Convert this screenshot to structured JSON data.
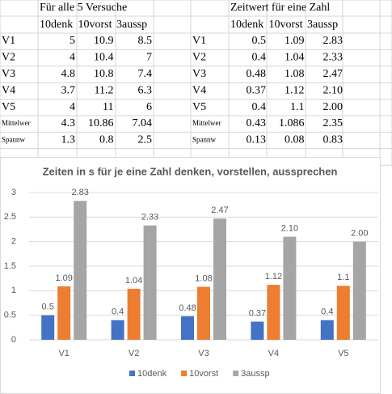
{
  "sheet": {
    "left_table": {
      "title": "Für alle 5 Versuche",
      "columns": [
        "10denk",
        "10vorst",
        "3aussp"
      ],
      "rows": [
        {
          "label": "V1",
          "cells": [
            "5",
            "10.9",
            "8.5"
          ]
        },
        {
          "label": "V2",
          "cells": [
            "4",
            "10.4",
            "7"
          ]
        },
        {
          "label": "V3",
          "cells": [
            "4.8",
            "10.8",
            "7.4"
          ]
        },
        {
          "label": "V4",
          "cells": [
            "3.7",
            "11.2",
            "6.3"
          ]
        },
        {
          "label": "V5",
          "cells": [
            "4",
            "11",
            "6"
          ]
        },
        {
          "label": "Mittelwer",
          "cells": [
            "4.3",
            "10.86",
            "7.04"
          ]
        },
        {
          "label": "Spannw",
          "cells": [
            "1.3",
            "0.8",
            "2.5"
          ]
        }
      ]
    },
    "right_table": {
      "title": "Zeitwert für eine Zahl",
      "columns": [
        "10denk",
        "10vorst",
        "3aussp"
      ],
      "rows": [
        {
          "label": "V1",
          "cells": [
            "0.5",
            "1.09",
            "2.83"
          ]
        },
        {
          "label": "V2",
          "cells": [
            "0.4",
            "1.04",
            "2.33"
          ]
        },
        {
          "label": "V3",
          "cells": [
            "0.48",
            "1.08",
            "2.47"
          ]
        },
        {
          "label": "V4",
          "cells": [
            "0.37",
            "1.12",
            "2.10"
          ]
        },
        {
          "label": "V5",
          "cells": [
            "0.4",
            "1.1",
            "2.00"
          ]
        },
        {
          "label": "Mittelwer",
          "cells": [
            "0.43",
            "1.086",
            "2.35"
          ]
        },
        {
          "label": "Spannw",
          "cells": [
            "0.13",
            "0.08",
            "0.83"
          ]
        }
      ]
    }
  },
  "chart_data": {
    "type": "bar",
    "title": "Zeiten in s für je eine Zahl denken, vorstellen, aussprechen",
    "categories": [
      "V1",
      "V2",
      "V3",
      "V4",
      "V5"
    ],
    "series": [
      {
        "name": "10denk",
        "color": "#4472c4",
        "values": [
          0.5,
          0.4,
          0.48,
          0.37,
          0.4
        ]
      },
      {
        "name": "10vorst",
        "color": "#ed7d31",
        "values": [
          1.09,
          1.04,
          1.08,
          1.12,
          1.1
        ]
      },
      {
        "name": "3aussp",
        "color": "#a5a5a5",
        "values": [
          2.83,
          2.33,
          2.47,
          2.1,
          2.0
        ],
        "value_labels": [
          "2.83",
          "2.33",
          "2.47",
          "2.10",
          "2.00"
        ]
      }
    ],
    "ylim": [
      0,
      3
    ],
    "yticks": [
      0,
      0.5,
      1,
      1.5,
      2,
      2.5,
      3
    ],
    "grid": true,
    "legend": "bottom"
  }
}
